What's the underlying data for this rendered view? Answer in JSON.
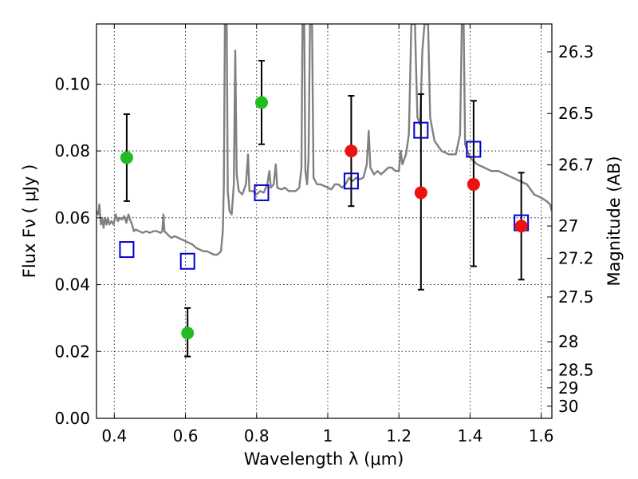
{
  "chart_data": {
    "type": "scatter",
    "title": "",
    "xlabel": "Wavelength  λ (μm)",
    "ylabel_left": "Flux  Fν  ( μJy )",
    "ylabel_right": "Magnitude (AB)",
    "xlim": [
      0.35,
      1.63
    ],
    "ylim": [
      0.0,
      0.118
    ],
    "x_ticks": [
      0.4,
      0.6,
      0.8,
      1.0,
      1.2,
      1.4,
      1.6
    ],
    "x_tick_labels": [
      "0.4",
      "0.6",
      "0.8",
      "1",
      "1.2",
      "1.4",
      "1.6"
    ],
    "y_ticks": [
      0.0,
      0.02,
      0.04,
      0.06,
      0.08,
      0.1
    ],
    "y_tick_labels": [
      "0.00",
      "0.02",
      "0.04",
      "0.06",
      "0.08",
      "0.10"
    ],
    "mag_ticks": [
      26.3,
      26.5,
      26.7,
      27,
      27.2,
      27.5,
      28,
      28.5,
      29,
      30
    ],
    "mag_tick_labels": [
      "26.3",
      "26.5",
      "26.7",
      "27",
      "27.2",
      "27.5",
      "28",
      "28.5",
      "29",
      "30"
    ],
    "grid": true,
    "colors": {
      "green": "#22bb22",
      "red": "#ee1111",
      "model_box": "#0000cc",
      "spectrum": "#808080",
      "errorbar": "#000000"
    },
    "series": [
      {
        "name": "observed (green)",
        "marker": "circle",
        "color": "#22bb22",
        "points": [
          {
            "x": 0.435,
            "y": 0.078,
            "err_low": 0.013,
            "err_high": 0.013
          },
          {
            "x": 0.606,
            "y": 0.0255,
            "err_low": 0.007,
            "err_high": 0.0075
          },
          {
            "x": 0.814,
            "y": 0.0945,
            "err_low": 0.0125,
            "err_high": 0.0125
          }
        ]
      },
      {
        "name": "observed (red)",
        "marker": "circle",
        "color": "#ee1111",
        "points": [
          {
            "x": 1.066,
            "y": 0.08,
            "err_low": 0.0165,
            "err_high": 0.0165
          },
          {
            "x": 1.262,
            "y": 0.0675,
            "err_low": 0.029,
            "err_high": 0.0295
          },
          {
            "x": 1.41,
            "y": 0.07,
            "err_low": 0.0245,
            "err_high": 0.025
          },
          {
            "x": 1.544,
            "y": 0.0575,
            "err_low": 0.016,
            "err_high": 0.016
          }
        ]
      },
      {
        "name": "model photometry",
        "marker": "open-square",
        "color": "#0000cc",
        "points": [
          {
            "x": 0.435,
            "y": 0.0505
          },
          {
            "x": 0.606,
            "y": 0.047
          },
          {
            "x": 0.814,
            "y": 0.0675
          },
          {
            "x": 1.066,
            "y": 0.071
          },
          {
            "x": 1.262,
            "y": 0.0862
          },
          {
            "x": 1.41,
            "y": 0.0805
          },
          {
            "x": 1.544,
            "y": 0.0585
          }
        ]
      },
      {
        "name": "model spectrum",
        "type": "line",
        "color": "#808080",
        "points": [
          [
            0.35,
            0.062
          ],
          [
            0.355,
            0.061
          ],
          [
            0.358,
            0.064
          ],
          [
            0.362,
            0.058
          ],
          [
            0.366,
            0.06
          ],
          [
            0.37,
            0.057
          ],
          [
            0.374,
            0.06
          ],
          [
            0.378,
            0.058
          ],
          [
            0.382,
            0.06
          ],
          [
            0.386,
            0.058
          ],
          [
            0.392,
            0.059
          ],
          [
            0.398,
            0.058
          ],
          [
            0.404,
            0.061
          ],
          [
            0.41,
            0.059
          ],
          [
            0.416,
            0.06
          ],
          [
            0.422,
            0.0595
          ],
          [
            0.428,
            0.0605
          ],
          [
            0.434,
            0.0585
          ],
          [
            0.44,
            0.061
          ],
          [
            0.446,
            0.059
          ],
          [
            0.45,
            0.058
          ],
          [
            0.455,
            0.056
          ],
          [
            0.46,
            0.0565
          ],
          [
            0.47,
            0.056
          ],
          [
            0.48,
            0.0555
          ],
          [
            0.49,
            0.056
          ],
          [
            0.5,
            0.0555
          ],
          [
            0.51,
            0.056
          ],
          [
            0.52,
            0.056
          ],
          [
            0.53,
            0.0555
          ],
          [
            0.535,
            0.056
          ],
          [
            0.538,
            0.061
          ],
          [
            0.541,
            0.056
          ],
          [
            0.55,
            0.055
          ],
          [
            0.56,
            0.054
          ],
          [
            0.57,
            0.0545
          ],
          [
            0.58,
            0.054
          ],
          [
            0.59,
            0.0535
          ],
          [
            0.6,
            0.053
          ],
          [
            0.61,
            0.0525
          ],
          [
            0.62,
            0.052
          ],
          [
            0.63,
            0.051
          ],
          [
            0.64,
            0.0505
          ],
          [
            0.65,
            0.05
          ],
          [
            0.66,
            0.05
          ],
          [
            0.67,
            0.0495
          ],
          [
            0.68,
            0.049
          ],
          [
            0.69,
            0.049
          ],
          [
            0.7,
            0.05
          ],
          [
            0.705,
            0.056
          ],
          [
            0.708,
            0.07
          ],
          [
            0.711,
            0.118
          ],
          [
            0.716,
            0.118
          ],
          [
            0.719,
            0.068
          ],
          [
            0.724,
            0.062
          ],
          [
            0.73,
            0.061
          ],
          [
            0.736,
            0.07
          ],
          [
            0.74,
            0.11
          ],
          [
            0.744,
            0.073
          ],
          [
            0.75,
            0.068
          ],
          [
            0.76,
            0.067
          ],
          [
            0.77,
            0.07
          ],
          [
            0.776,
            0.079
          ],
          [
            0.78,
            0.068
          ],
          [
            0.79,
            0.068
          ],
          [
            0.8,
            0.067
          ],
          [
            0.81,
            0.068
          ],
          [
            0.82,
            0.0675
          ],
          [
            0.83,
            0.07
          ],
          [
            0.836,
            0.074
          ],
          [
            0.84,
            0.069
          ],
          [
            0.848,
            0.07
          ],
          [
            0.854,
            0.076
          ],
          [
            0.858,
            0.069
          ],
          [
            0.87,
            0.0685
          ],
          [
            0.88,
            0.069
          ],
          [
            0.89,
            0.068
          ],
          [
            0.9,
            0.068
          ],
          [
            0.91,
            0.068
          ],
          [
            0.92,
            0.069
          ],
          [
            0.926,
            0.075
          ],
          [
            0.929,
            0.118
          ],
          [
            0.934,
            0.118
          ],
          [
            0.937,
            0.074
          ],
          [
            0.942,
            0.07
          ],
          [
            0.946,
            0.078
          ],
          [
            0.95,
            0.118
          ],
          [
            0.956,
            0.118
          ],
          [
            0.96,
            0.072
          ],
          [
            0.97,
            0.07
          ],
          [
            0.98,
            0.07
          ],
          [
            0.99,
            0.0695
          ],
          [
            1.0,
            0.069
          ],
          [
            1.01,
            0.0685
          ],
          [
            1.02,
            0.07
          ],
          [
            1.03,
            0.07
          ],
          [
            1.04,
            0.069
          ],
          [
            1.05,
            0.07
          ],
          [
            1.06,
            0.072
          ],
          [
            1.07,
            0.071
          ],
          [
            1.08,
            0.072
          ],
          [
            1.09,
            0.0715
          ],
          [
            1.1,
            0.072
          ],
          [
            1.11,
            0.076
          ],
          [
            1.115,
            0.086
          ],
          [
            1.12,
            0.075
          ],
          [
            1.13,
            0.073
          ],
          [
            1.14,
            0.074
          ],
          [
            1.15,
            0.073
          ],
          [
            1.16,
            0.074
          ],
          [
            1.17,
            0.075
          ],
          [
            1.18,
            0.075
          ],
          [
            1.19,
            0.074
          ],
          [
            1.2,
            0.074
          ],
          [
            1.205,
            0.08
          ],
          [
            1.21,
            0.076
          ],
          [
            1.22,
            0.079
          ],
          [
            1.228,
            0.085
          ],
          [
            1.235,
            0.118
          ],
          [
            1.245,
            0.118
          ],
          [
            1.252,
            0.09
          ],
          [
            1.26,
            0.088
          ],
          [
            1.266,
            0.11
          ],
          [
            1.272,
            0.118
          ],
          [
            1.282,
            0.118
          ],
          [
            1.288,
            0.09
          ],
          [
            1.3,
            0.083
          ],
          [
            1.32,
            0.08
          ],
          [
            1.34,
            0.079
          ],
          [
            1.36,
            0.079
          ],
          [
            1.372,
            0.085
          ],
          [
            1.377,
            0.118
          ],
          [
            1.382,
            0.118
          ],
          [
            1.386,
            0.082
          ],
          [
            1.4,
            0.078
          ],
          [
            1.42,
            0.076
          ],
          [
            1.44,
            0.075
          ],
          [
            1.46,
            0.074
          ],
          [
            1.48,
            0.074
          ],
          [
            1.5,
            0.073
          ],
          [
            1.52,
            0.072
          ],
          [
            1.54,
            0.071
          ],
          [
            1.56,
            0.07
          ],
          [
            1.58,
            0.067
          ],
          [
            1.6,
            0.066
          ],
          [
            1.615,
            0.065
          ],
          [
            1.625,
            0.064
          ],
          [
            1.63,
            0.062
          ]
        ]
      }
    ]
  }
}
